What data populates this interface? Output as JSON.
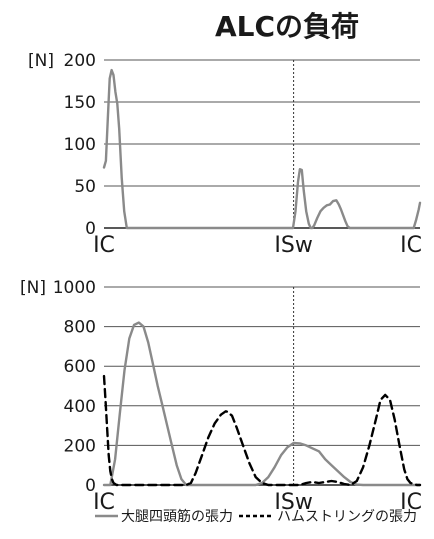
{
  "title": "ALCの負荷",
  "chart_data": [
    {
      "type": "line",
      "title": "ALCの負荷",
      "ylabel": "[N]",
      "ylim": [
        0,
        200
      ],
      "yticks": [
        0,
        50,
        100,
        150,
        200
      ],
      "xlim": [
        0,
        100
      ],
      "x_markers": [
        {
          "label": "IC",
          "x": 0
        },
        {
          "label": "ISw",
          "x": 60
        },
        {
          "label": "IC",
          "x": 100
        }
      ],
      "grid": true,
      "series": [
        {
          "name": "大腿四頭筋の張力",
          "color": "#8a8a8a",
          "dash": "solid",
          "x": [
            0,
            0.6,
            1.2,
            1.8,
            2.4,
            3.0,
            3.6,
            4.2,
            4.8,
            5.6,
            6.4,
            7.2,
            8.0,
            9.0,
            10.0,
            59.8,
            60.6,
            61.4,
            62.0,
            62.6,
            63.2,
            64.0,
            64.8,
            65.4,
            65.9,
            66.5,
            67.5,
            68.5,
            69.5,
            70.5,
            71.5,
            72.5,
            73.5,
            74.3,
            75.0,
            75.7,
            76.4,
            77.1,
            77.8,
            98.0,
            98.8,
            99.6,
            100
          ],
          "y": [
            72,
            80,
            130,
            178,
            188,
            182,
            162,
            148,
            118,
            60,
            20,
            0,
            0,
            0,
            0,
            0,
            20,
            55,
            70,
            69,
            45,
            20,
            5,
            0,
            0,
            3,
            12,
            20,
            24,
            27,
            28,
            32,
            33,
            28,
            22,
            15,
            8,
            2,
            0,
            0,
            10,
            22,
            30
          ]
        }
      ]
    },
    {
      "type": "line",
      "ylabel": "[N]",
      "ylim": [
        0,
        1000
      ],
      "yticks": [
        0,
        200,
        400,
        600,
        800,
        1000
      ],
      "xlim": [
        0,
        100
      ],
      "x_markers": [
        {
          "label": "IC",
          "x": 0
        },
        {
          "label": "ISw",
          "x": 60
        },
        {
          "label": "IC",
          "x": 100
        }
      ],
      "grid": true,
      "series": [
        {
          "name": "大腿四頭筋の張力",
          "color": "#8a8a8a",
          "dash": "solid",
          "x": [
            0,
            1.0,
            2.0,
            3.5,
            5.0,
            6.5,
            8.0,
            9.5,
            11.0,
            12.5,
            14.0,
            15.5,
            17.0,
            18.5,
            20.0,
            21.5,
            23.0,
            24.5,
            26.0,
            27.5,
            29.0,
            30.5,
            32.0,
            34.0,
            36.0,
            38.0,
            40.0,
            42.0,
            44.0,
            46.0,
            48.0,
            50.0,
            52.0,
            54.0,
            56.0,
            58.0,
            60.0,
            62.0,
            64.0,
            66.0,
            68.0,
            70.0,
            72.0,
            74.0,
            76.0,
            78.0,
            80.0,
            82.0,
            84.0,
            86.0,
            88.0,
            90.0,
            92.0,
            94.0,
            96.0,
            98.0,
            100
          ],
          "y": [
            0,
            0,
            0,
            130,
            360,
            580,
            740,
            808,
            820,
            800,
            720,
            610,
            500,
            400,
            300,
            200,
            100,
            30,
            0,
            0,
            0,
            0,
            0,
            0,
            0,
            0,
            0,
            0,
            0,
            0,
            0,
            10,
            40,
            90,
            150,
            190,
            212,
            210,
            200,
            185,
            170,
            130,
            100,
            70,
            40,
            15,
            2,
            0,
            0,
            0,
            0,
            0,
            0,
            0,
            0,
            0,
            0
          ]
        },
        {
          "name": "ハムストリングの張力",
          "color": "#000000",
          "dash": "dashed",
          "x": [
            0,
            0.5,
            1.0,
            1.5,
            2.0,
            2.5,
            3.0,
            4.0,
            5.0,
            6.0,
            8.0,
            10.0,
            12.0,
            14.0,
            16.0,
            18.0,
            20.0,
            22.0,
            24.0,
            26.0,
            27.5,
            29.0,
            31.0,
            33.0,
            35.0,
            37.0,
            38.5,
            39.0,
            40.5,
            42.0,
            44.0,
            46.0,
            48.0,
            50.0,
            52.0,
            54.0,
            56.0,
            58.0,
            60.0,
            62.0,
            64.0,
            66.0,
            68.0,
            70.0,
            72.0,
            74.0,
            76.0,
            78.0,
            80.0,
            82.0,
            84.0,
            86.0,
            87.5,
            89.0,
            90.5,
            92.0,
            93.5,
            95.0,
            96.0,
            97.0,
            98.0,
            99.0,
            100
          ],
          "y": [
            550,
            420,
            280,
            150,
            70,
            30,
            10,
            0,
            0,
            0,
            0,
            0,
            0,
            0,
            0,
            0,
            0,
            0,
            0,
            0,
            10,
            60,
            150,
            240,
            310,
            355,
            372,
            370,
            350,
            290,
            200,
            110,
            40,
            10,
            0,
            0,
            0,
            0,
            0,
            0,
            10,
            15,
            10,
            15,
            20,
            15,
            5,
            0,
            20,
            90,
            200,
            330,
            430,
            455,
            430,
            330,
            200,
            80,
            30,
            10,
            5,
            0,
            0
          ]
        }
      ]
    }
  ],
  "legend": {
    "items": [
      {
        "label": "大腿四頭筋の張力",
        "color": "#8a8a8a",
        "dash": "solid"
      },
      {
        "label": "ハムストリングの張力",
        "color": "#000000",
        "dash": "dashed"
      }
    ]
  }
}
